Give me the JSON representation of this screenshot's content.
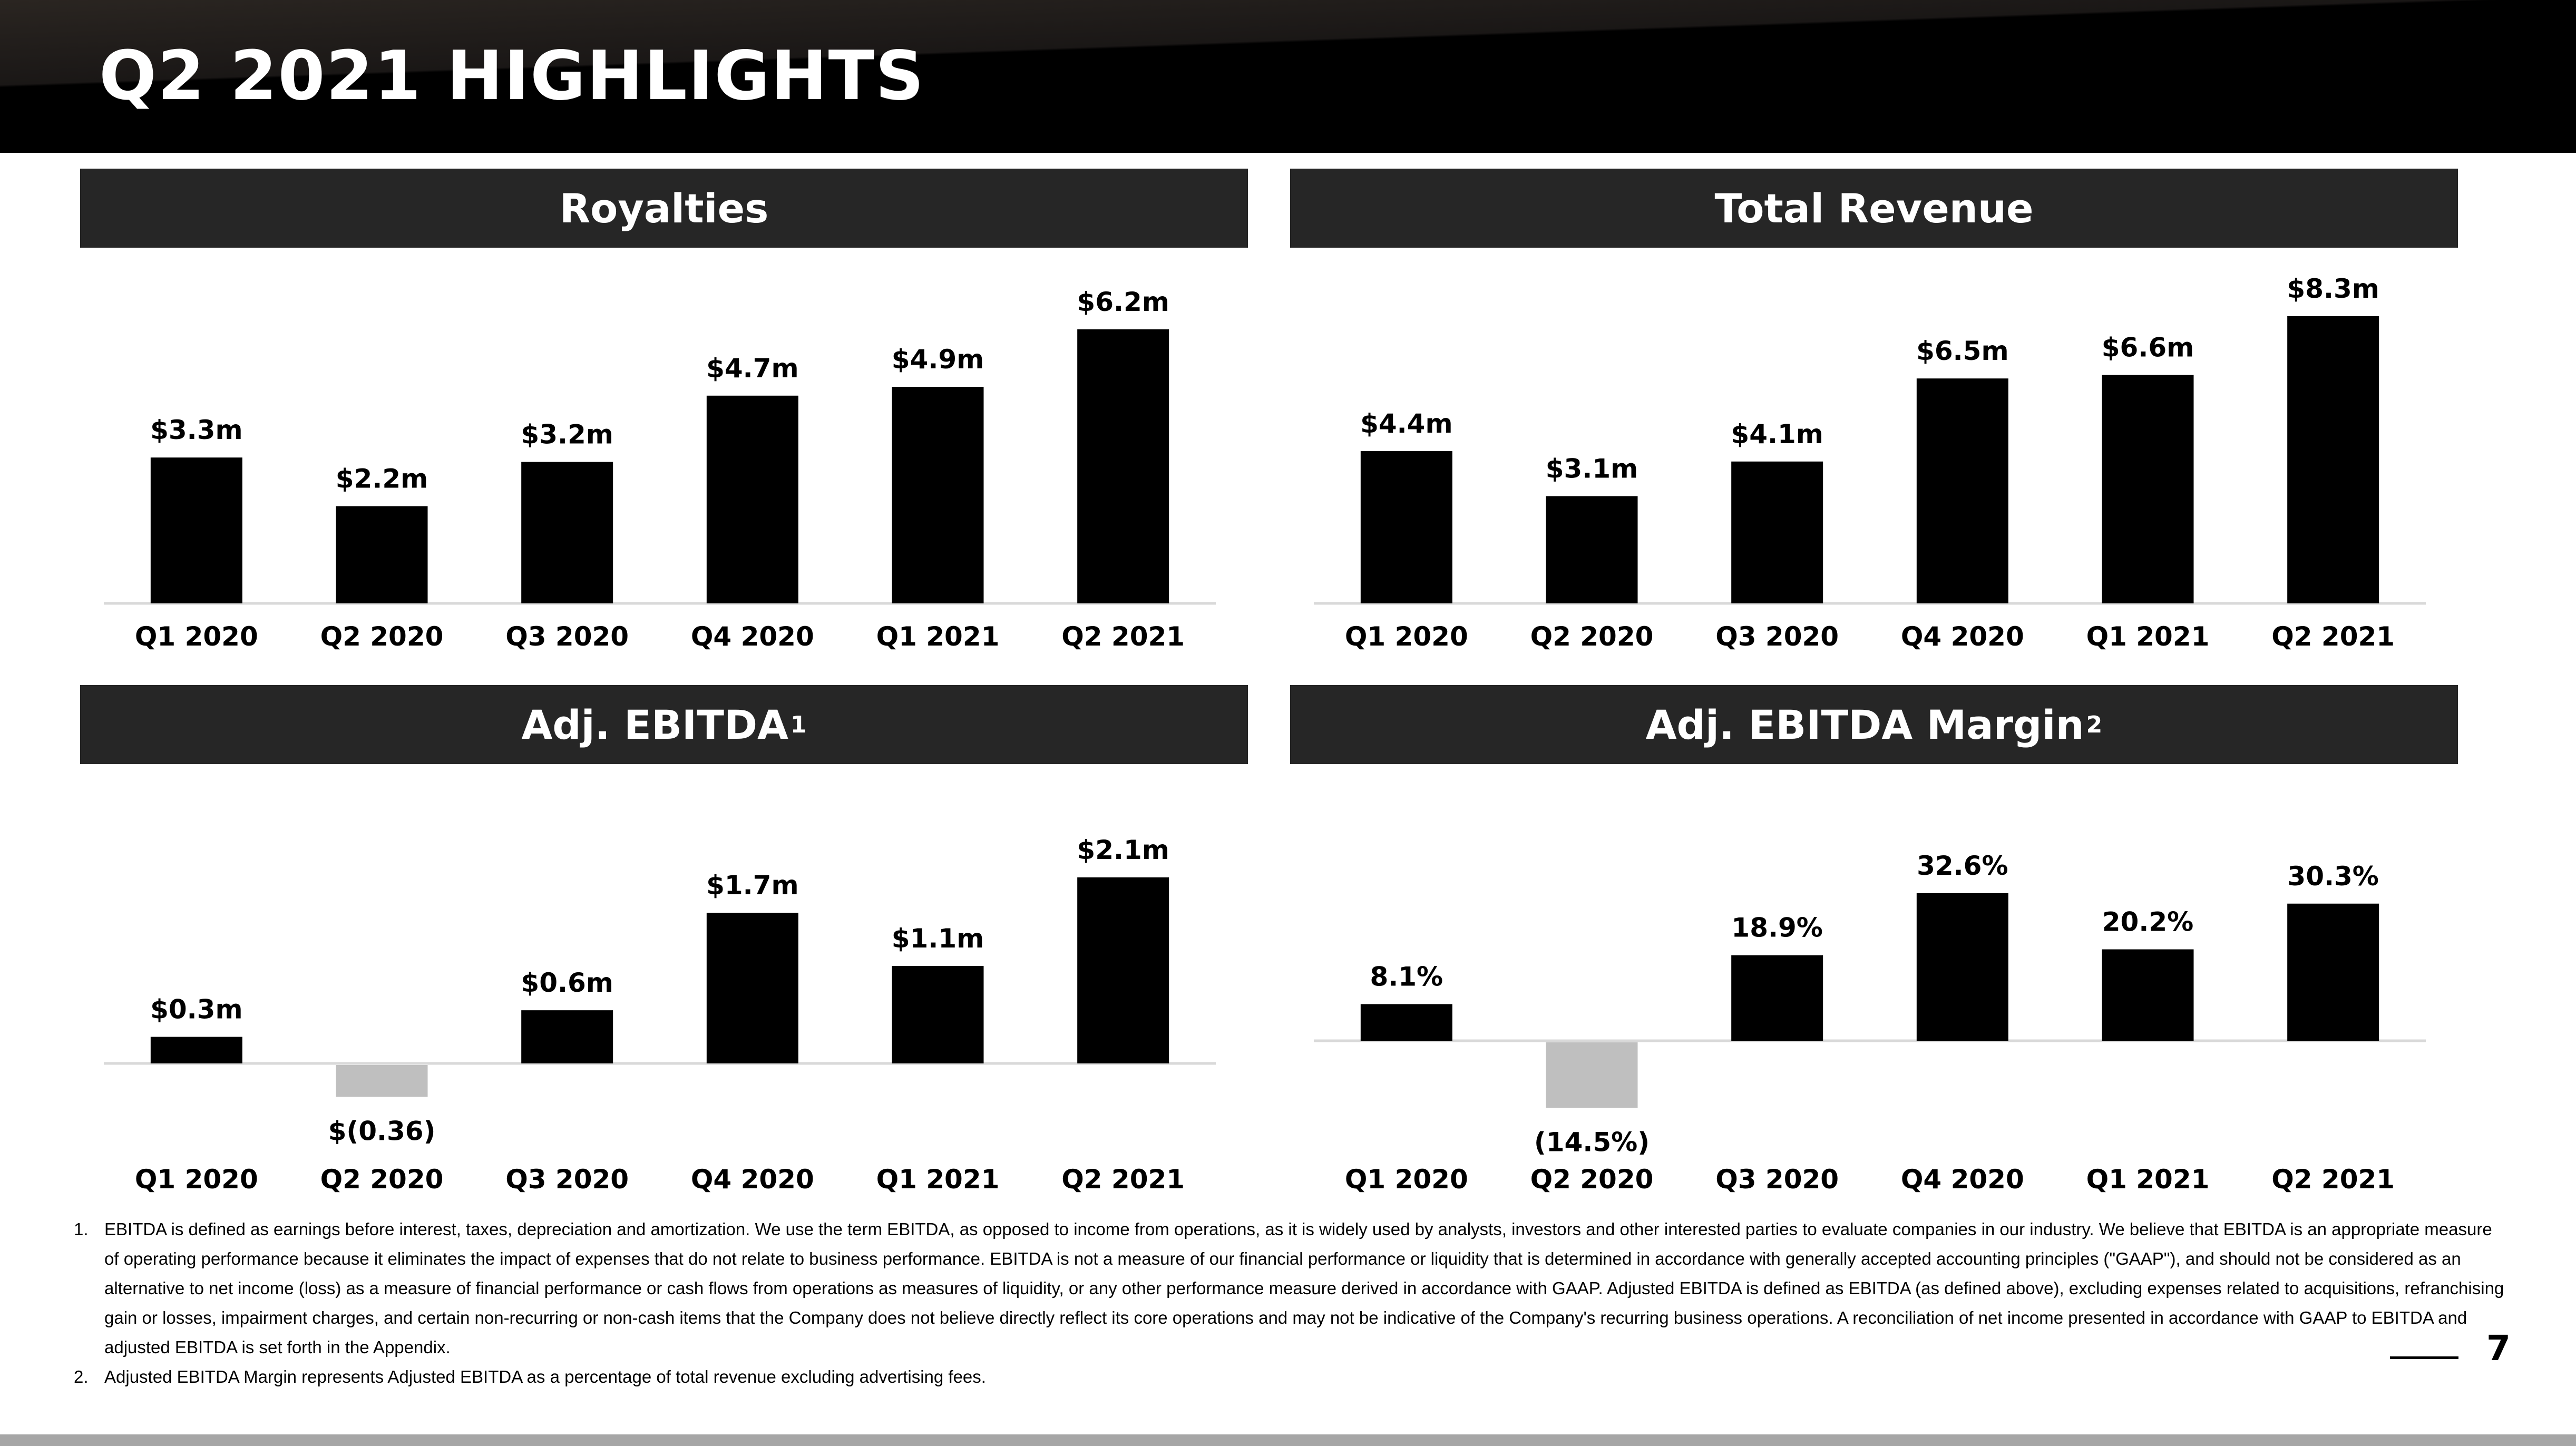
{
  "page": {
    "title": "Q2 2021 HIGHLIGHTS",
    "page_number": "7"
  },
  "colors": {
    "bar_positive": "#000000",
    "bar_negative": "#bfbfbf",
    "panel_header": "#262626"
  },
  "panels": [
    {
      "title": "Royalties",
      "superscript": ""
    },
    {
      "title": "Total Revenue",
      "superscript": ""
    },
    {
      "title": "Adj. EBITDA",
      "superscript": "1"
    },
    {
      "title": "Adj. EBITDA Margin",
      "superscript": "2"
    }
  ],
  "chart_data": [
    {
      "type": "bar",
      "title": "Royalties",
      "categories": [
        "Q1 2020",
        "Q2 2020",
        "Q3 2020",
        "Q4 2020",
        "Q1 2021",
        "Q2 2021"
      ],
      "values": [
        3.3,
        2.2,
        3.2,
        4.7,
        4.9,
        6.2
      ],
      "data_labels": [
        "$3.3m",
        "$2.2m",
        "$3.2m",
        "$4.7m",
        "$4.9m",
        "$6.2m"
      ],
      "unit": "$m",
      "ylim": [
        0,
        6.2
      ],
      "grid": false
    },
    {
      "type": "bar",
      "title": "Total Revenue",
      "categories": [
        "Q1 2020",
        "Q2 2020",
        "Q3 2020",
        "Q4 2020",
        "Q1 2021",
        "Q2 2021"
      ],
      "values": [
        4.4,
        3.1,
        4.1,
        6.5,
        6.6,
        8.3
      ],
      "data_labels": [
        "$4.4m",
        "$3.1m",
        "$4.1m",
        "$6.5m",
        "$6.6m",
        "$8.3m"
      ],
      "unit": "$m",
      "ylim": [
        0,
        8.3
      ],
      "grid": false
    },
    {
      "type": "bar",
      "title": "Adj. EBITDA",
      "categories": [
        "Q1 2020",
        "Q2 2020",
        "Q3 2020",
        "Q4 2020",
        "Q1 2021",
        "Q2 2021"
      ],
      "values": [
        0.3,
        -0.36,
        0.6,
        1.7,
        1.1,
        2.1
      ],
      "data_labels": [
        "$0.3m",
        "$(0.36)",
        "$0.6m",
        "$1.7m",
        "$1.1m",
        "$2.1m"
      ],
      "unit": "$m",
      "ylim": [
        -0.36,
        2.1
      ],
      "grid": false
    },
    {
      "type": "bar",
      "title": "Adj. EBITDA Margin",
      "categories": [
        "Q1 2020",
        "Q2 2020",
        "Q3 2020",
        "Q4 2020",
        "Q1 2021",
        "Q2 2021"
      ],
      "values": [
        8.1,
        -14.5,
        18.9,
        32.6,
        20.2,
        30.3
      ],
      "data_labels": [
        "8.1%",
        "(14.5%)",
        "18.9%",
        "32.6%",
        "20.2%",
        "30.3%"
      ],
      "unit": "%",
      "ylim": [
        -14.5,
        32.6
      ],
      "grid": false
    }
  ],
  "footnotes": [
    {
      "num": "1.",
      "text": "EBITDA is defined as earnings before interest, taxes, depreciation and amortization. We use the term EBITDA, as opposed to income from operations, as it is widely used by analysts, investors and other interested parties to evaluate companies in our industry. We believe that EBITDA is an appropriate measure of operating performance because it eliminates the impact of expenses that do not relate to business performance. EBITDA is not a measure of our financial performance or liquidity that is determined in accordance with generally accepted accounting principles (\"GAAP\"), and should not be considered as an alternative to net income (loss) as a measure of financial performance or cash flows from operations as measures of liquidity, or any other performance measure derived in accordance with GAAP. Adjusted EBITDA is defined as EBITDA (as defined above), excluding expenses related to acquisitions, refranchising gain or losses, impairment charges, and certain non-recurring or non-cash items that the Company does not believe directly reflect its core operations and may not be indicative of the Company's recurring business operations. A reconciliation of net income presented in accordance with GAAP to EBITDA and adjusted EBITDA is set forth in the Appendix."
    },
    {
      "num": "2.",
      "text": "Adjusted EBITDA Margin represents Adjusted EBITDA as a percentage of total revenue excluding advertising fees."
    }
  ]
}
